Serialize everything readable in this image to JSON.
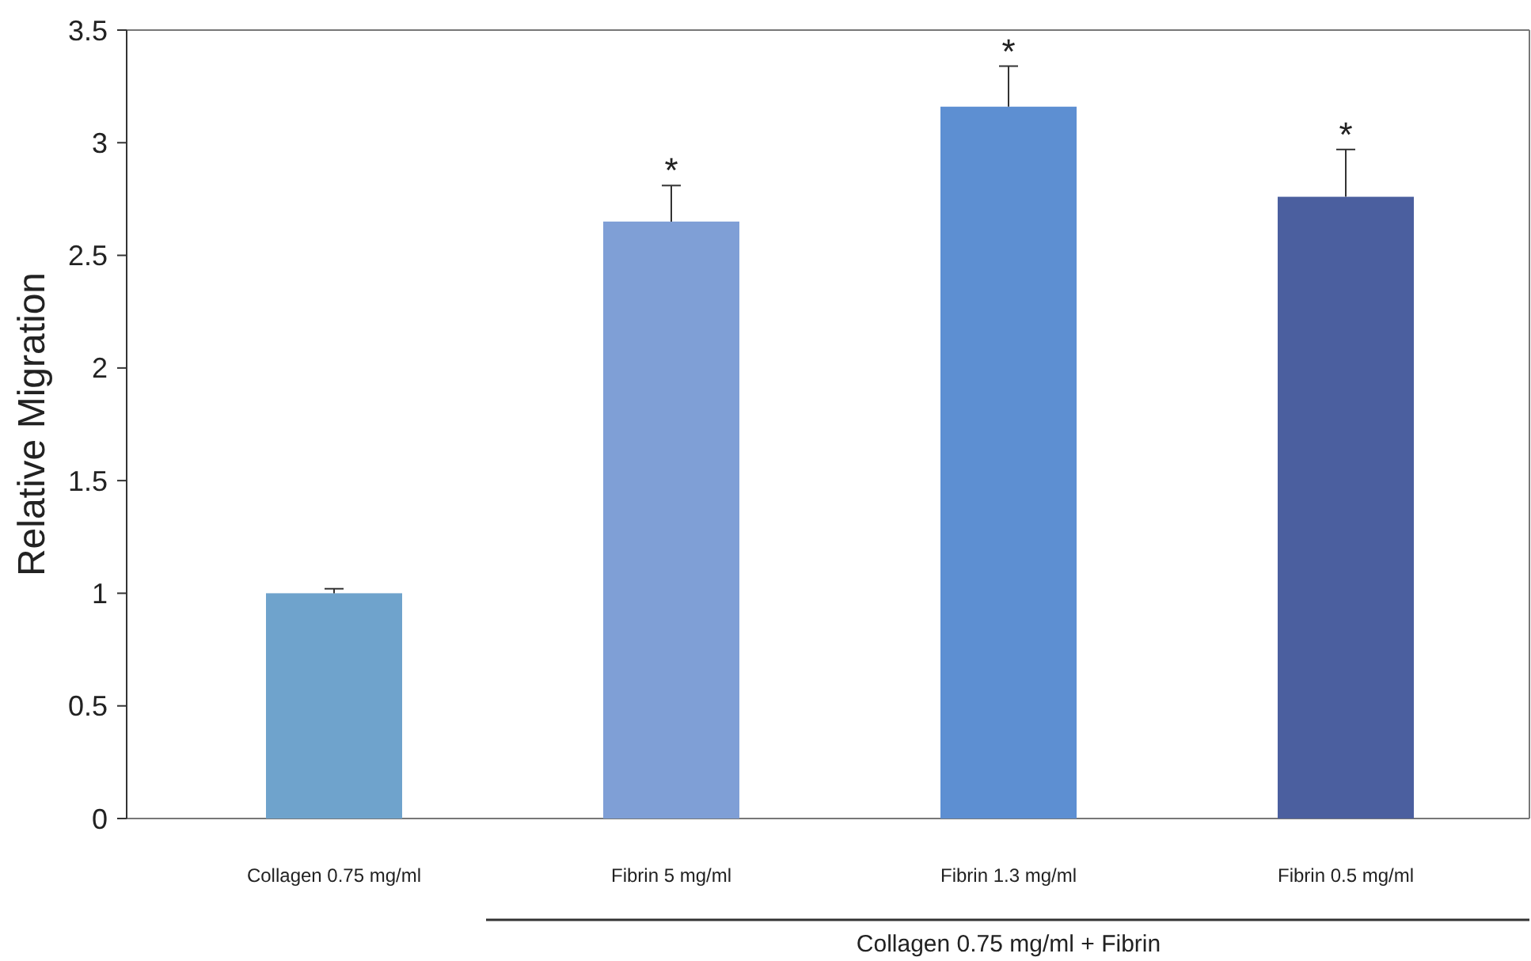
{
  "chart_data": {
    "type": "bar",
    "ylabel": "Relative Migration",
    "categories": [
      "Collagen 0.75 mg/ml",
      "Fibrin 5 mg/ml",
      "Fibrin 1.3 mg/ml",
      "Fibrin 0.5 mg/ml"
    ],
    "values": [
      1.0,
      2.65,
      3.16,
      2.76
    ],
    "colors": [
      "#6fa3cc",
      "#7f9fd6",
      "#5d8fd2",
      "#4b5f9f"
    ],
    "errors": [
      0.02,
      0.16,
      0.18,
      0.21
    ],
    "ylim": [
      0,
      3.5
    ],
    "yticks": [
      0,
      0.5,
      1,
      1.5,
      2,
      2.5,
      3,
      3.5
    ],
    "annotations": [
      {
        "text": "*",
        "x": "Fibrin 5 mg/ml",
        "y": 2.81
      },
      {
        "text": "*",
        "x": "Fibrin 1.3 mg/ml",
        "y": 3.34
      },
      {
        "text": "*",
        "x": "Fibrin 0.5 mg/ml",
        "y": 2.97
      },
      "Collagen 0.75 mg/ml + Fibrin"
    ]
  }
}
